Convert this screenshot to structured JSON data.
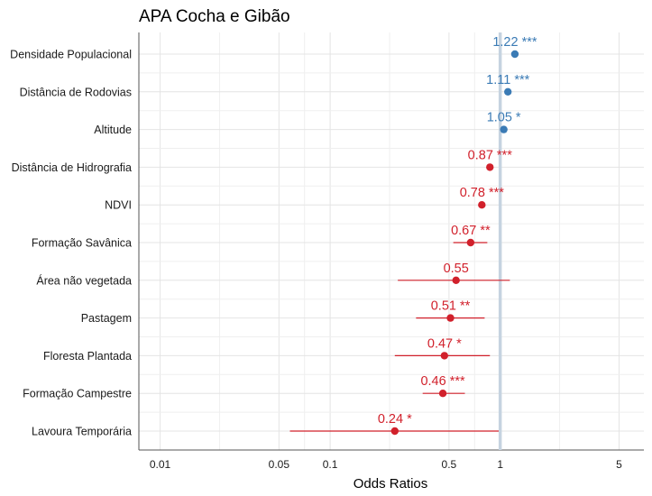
{
  "chart_data": {
    "type": "scatter",
    "subtype": "forest-plot",
    "title": "APA Cocha e Gibão",
    "xlabel": "Odds Ratios",
    "ylabel": "",
    "x_scale": "log",
    "xlim": [
      0.0075,
      7
    ],
    "x_ticks": [
      {
        "value": 0.01,
        "label": "0.01"
      },
      {
        "value": 0.05,
        "label": "0.05"
      },
      {
        "value": 0.1,
        "label": "0.1"
      },
      {
        "value": 0.5,
        "label": "0.5"
      },
      {
        "value": 1,
        "label": "1"
      },
      {
        "value": 5,
        "label": "5"
      }
    ],
    "reference_line": 1,
    "grid": true,
    "colors": {
      "positive": "#3b7bb5",
      "negative": "#d1202b",
      "reference": "#c5d3e0"
    },
    "rows": [
      {
        "name": "Densidade Populacional",
        "or": 1.22,
        "ci": [
          1.18,
          1.27
        ],
        "stars": "***",
        "label": "1.22 ***",
        "direction": "positive"
      },
      {
        "name": "Distância de Rodovias",
        "or": 1.11,
        "ci": [
          1.07,
          1.15
        ],
        "stars": "***",
        "label": "1.11 ***",
        "direction": "positive"
      },
      {
        "name": "Altitude",
        "or": 1.05,
        "ci": [
          1.02,
          1.08
        ],
        "stars": "*",
        "label": "1.05 *",
        "direction": "positive"
      },
      {
        "name": "Distância de Hidrografia",
        "or": 0.87,
        "ci": [
          0.84,
          0.9
        ],
        "stars": "***",
        "label": "0.87 ***",
        "direction": "negative"
      },
      {
        "name": "NDVI",
        "or": 0.78,
        "ci": [
          0.75,
          0.81
        ],
        "stars": "***",
        "label": "0.78 ***",
        "direction": "negative"
      },
      {
        "name": "Formação Savânica",
        "or": 0.67,
        "ci": [
          0.53,
          0.84
        ],
        "stars": "**",
        "label": "0.67 **",
        "direction": "negative"
      },
      {
        "name": "Área não vegetada",
        "or": 0.55,
        "ci": [
          0.25,
          1.14
        ],
        "stars": "",
        "label": "0.55",
        "direction": "negative"
      },
      {
        "name": "Pastagem",
        "or": 0.51,
        "ci": [
          0.32,
          0.81
        ],
        "stars": "**",
        "label": "0.51 **",
        "direction": "negative"
      },
      {
        "name": "Floresta Plantada",
        "or": 0.47,
        "ci": [
          0.24,
          0.87
        ],
        "stars": "*",
        "label": "0.47 *",
        "direction": "negative"
      },
      {
        "name": "Formação Campestre",
        "or": 0.46,
        "ci": [
          0.35,
          0.62
        ],
        "stars": "***",
        "label": "0.46 ***",
        "direction": "negative"
      },
      {
        "name": "Lavoura Temporária",
        "or": 0.24,
        "ci": [
          0.058,
          0.98
        ],
        "stars": "*",
        "label": "0.24 *",
        "direction": "negative"
      }
    ]
  }
}
